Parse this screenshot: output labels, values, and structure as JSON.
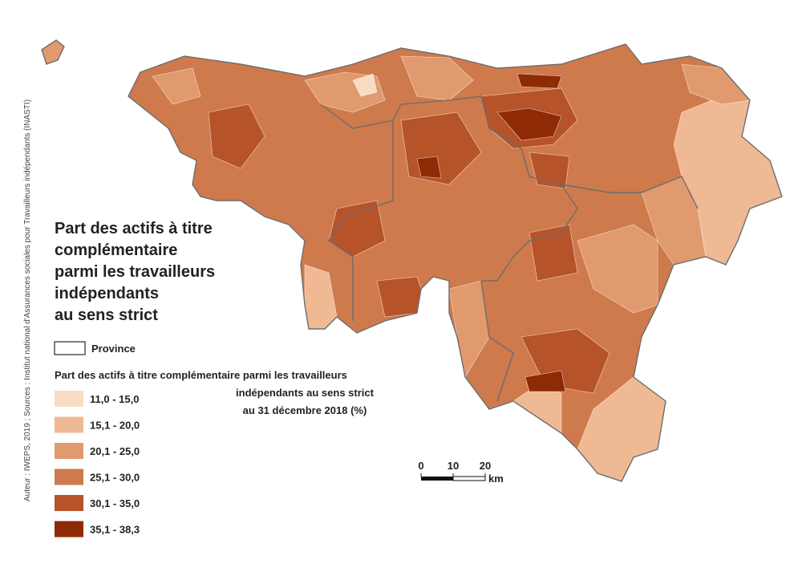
{
  "title_lines": [
    "Part des actifs à titre",
    "complémentaire",
    "parmi les travailleurs",
    "indépendants",
    "au sens strict"
  ],
  "province_label": "Province",
  "legend": {
    "title_lines": [
      "Part des actifs à titre complémentaire parmi les travailleurs",
      "indépendants au sens strict",
      "au 31 décembre 2018 (%)"
    ],
    "classes": [
      {
        "label": "11,0 - 15,0",
        "color": "#f9dcc4"
      },
      {
        "label": "15,1 - 20,0",
        "color": "#efb994"
      },
      {
        "label": "20,1 - 25,0",
        "color": "#e09a6e"
      },
      {
        "label": "25,1 - 30,0",
        "color": "#cf7a4c"
      },
      {
        "label": "30,1 - 35,0",
        "color": "#b65328"
      },
      {
        "label": "35,1 - 38,3",
        "color": "#8f2a06"
      }
    ]
  },
  "scale_bar": {
    "ticks": [
      0,
      10,
      20
    ],
    "unit": "km"
  },
  "source": "Auteur : IWEPS, 2019 ; Sources : Institut national d'Assurances sociales pour Travailleurs indépendants (INASTI)"
}
